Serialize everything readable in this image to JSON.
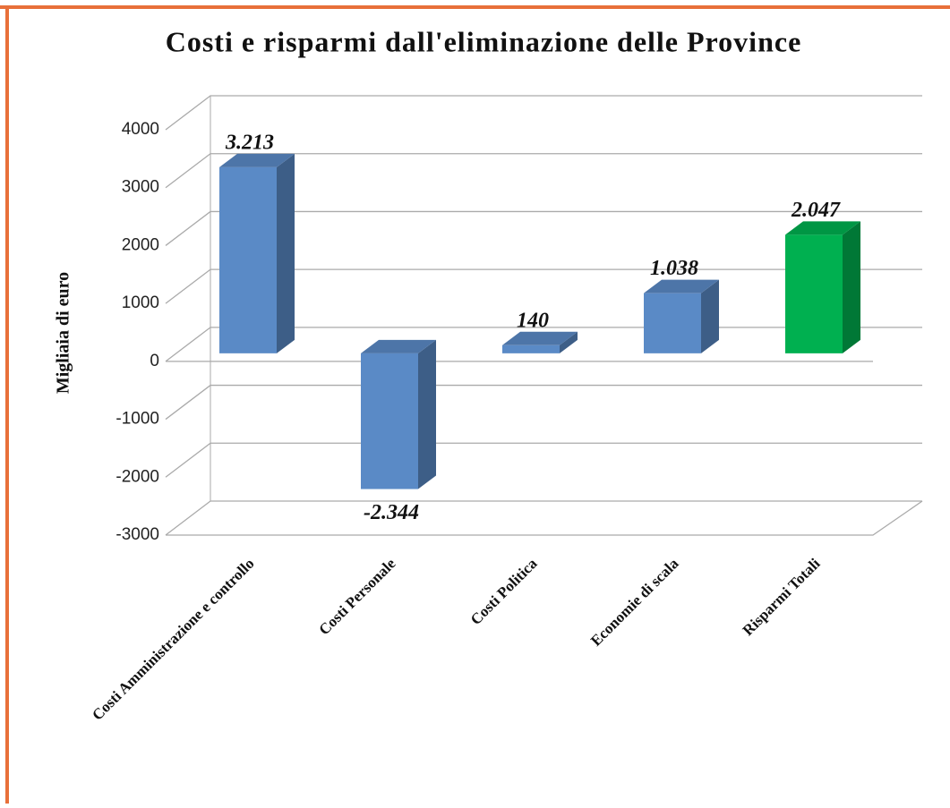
{
  "chart_data": {
    "type": "bar3d",
    "title": "Costi e risparmi dall'eliminazione delle Province",
    "ylabel": "Migliaia di euro",
    "categories": [
      "Costi Amministrazione e controllo",
      "Costi Personale",
      "Costi Politica",
      "Economie di scala",
      "Risparmi Totali"
    ],
    "values": [
      3213,
      -2344,
      140,
      1038,
      2047
    ],
    "value_labels": [
      "3.213",
      "-2.344",
      "140",
      "1.038",
      "2.047"
    ],
    "colors": [
      "#5a8ac6",
      "#5a8ac6",
      "#5a8ac6",
      "#5a8ac6",
      "#00b050"
    ],
    "ylim": [
      -3000,
      4000
    ],
    "yticks": [
      -3000,
      -2000,
      -1000,
      0,
      1000,
      2000,
      3000,
      4000
    ],
    "grid": true
  }
}
